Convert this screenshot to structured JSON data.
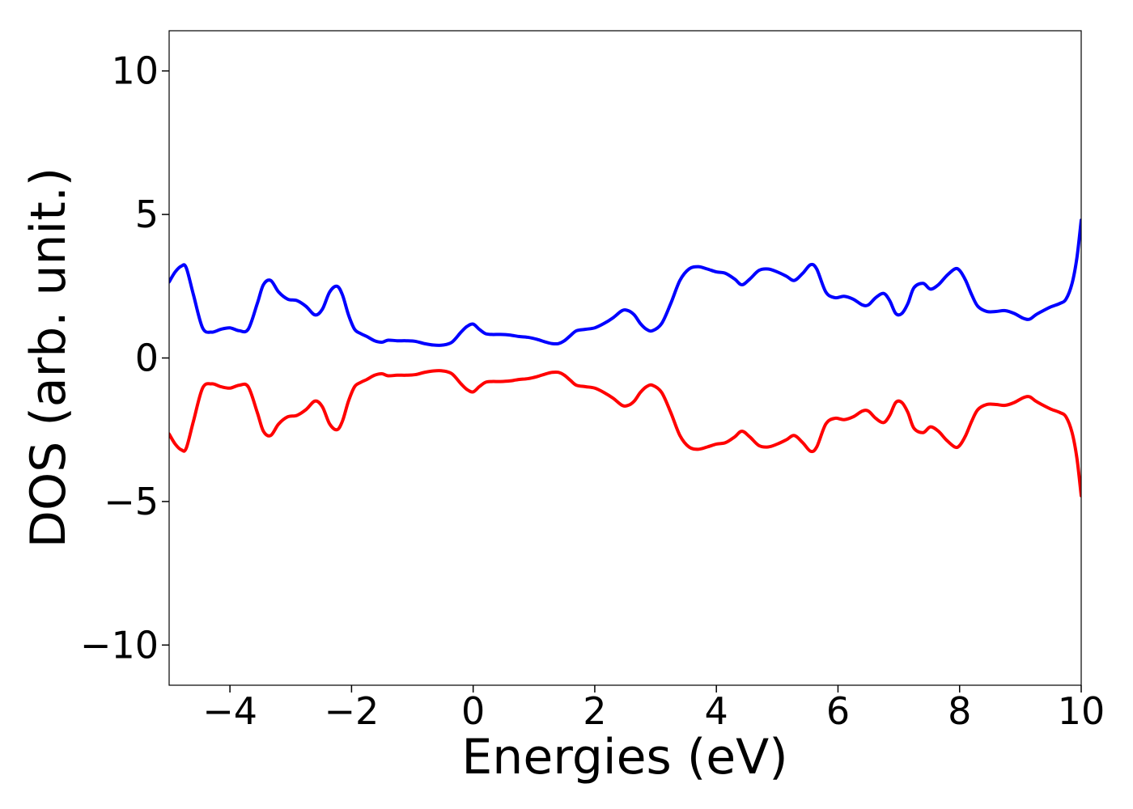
{
  "chart_data": {
    "type": "line",
    "title": "",
    "xlabel": "Energies (eV)",
    "ylabel": "DOS (arb. unit.)",
    "xlim": [
      -5,
      10
    ],
    "ylim": [
      -11.4,
      11.4
    ],
    "xticks": [
      -4,
      -2,
      0,
      2,
      4,
      6,
      8,
      10
    ],
    "xtick_labels": [
      "−4",
      "−2",
      "0",
      "2",
      "4",
      "6",
      "8",
      "10"
    ],
    "yticks": [
      -10,
      -5,
      0,
      5,
      10
    ],
    "ytick_labels": [
      "−10",
      "−5",
      "0",
      "5",
      "10"
    ],
    "grid": false,
    "legend": "none",
    "series": [
      {
        "color": "#0000ff",
        "x": [
          -5.0,
          -4.9,
          -4.8,
          -4.72,
          -4.6,
          -4.45,
          -4.3,
          -4.15,
          -4.0,
          -3.85,
          -3.7,
          -3.55,
          -3.45,
          -3.33,
          -3.2,
          -3.05,
          -2.9,
          -2.75,
          -2.6,
          -2.48,
          -2.36,
          -2.24,
          -2.15,
          -2.05,
          -1.95,
          -1.85,
          -1.75,
          -1.62,
          -1.5,
          -1.4,
          -1.25,
          -1.1,
          -0.95,
          -0.8,
          -0.65,
          -0.5,
          -0.35,
          -0.2,
          -0.1,
          0.0,
          0.1,
          0.2,
          0.3,
          0.45,
          0.6,
          0.75,
          0.9,
          1.05,
          1.2,
          1.3,
          1.4,
          1.5,
          1.6,
          1.7,
          1.85,
          2.0,
          2.15,
          2.3,
          2.45,
          2.55,
          2.65,
          2.75,
          2.85,
          2.95,
          3.1,
          3.25,
          3.4,
          3.55,
          3.7,
          3.85,
          4.0,
          4.15,
          4.3,
          4.42,
          4.55,
          4.7,
          4.85,
          5.0,
          5.15,
          5.28,
          5.42,
          5.55,
          5.65,
          5.8,
          5.95,
          6.1,
          6.25,
          6.4,
          6.5,
          6.62,
          6.75,
          6.85,
          6.95,
          7.05,
          7.15,
          7.25,
          7.4,
          7.52,
          7.65,
          7.78,
          7.92,
          8.0,
          8.1,
          8.2,
          8.3,
          8.45,
          8.6,
          8.75,
          8.9,
          9.05,
          9.15,
          9.25,
          9.35,
          9.5,
          9.65,
          9.75,
          9.85,
          9.93,
          10.0
        ],
        "y": [
          2.65,
          3.0,
          3.2,
          3.15,
          2.2,
          1.05,
          0.9,
          1.0,
          1.05,
          0.95,
          1.0,
          1.9,
          2.55,
          2.7,
          2.3,
          2.05,
          2.0,
          1.8,
          1.5,
          1.7,
          2.3,
          2.5,
          2.2,
          1.5,
          1.0,
          0.85,
          0.75,
          0.6,
          0.55,
          0.62,
          0.6,
          0.6,
          0.58,
          0.5,
          0.45,
          0.45,
          0.55,
          0.9,
          1.1,
          1.18,
          1.0,
          0.85,
          0.82,
          0.82,
          0.8,
          0.75,
          0.72,
          0.65,
          0.55,
          0.5,
          0.5,
          0.6,
          0.78,
          0.95,
          1.0,
          1.05,
          1.2,
          1.4,
          1.65,
          1.65,
          1.5,
          1.2,
          1.0,
          0.95,
          1.2,
          1.9,
          2.7,
          3.1,
          3.18,
          3.1,
          3.0,
          2.95,
          2.75,
          2.55,
          2.75,
          3.05,
          3.1,
          3.0,
          2.85,
          2.7,
          2.95,
          3.25,
          3.1,
          2.3,
          2.1,
          2.15,
          2.05,
          1.85,
          1.85,
          2.1,
          2.25,
          2.0,
          1.55,
          1.55,
          1.9,
          2.45,
          2.6,
          2.4,
          2.55,
          2.85,
          3.1,
          3.05,
          2.7,
          2.2,
          1.8,
          1.62,
          1.62,
          1.65,
          1.55,
          1.38,
          1.35,
          1.5,
          1.62,
          1.78,
          1.9,
          2.05,
          2.6,
          3.5,
          4.8
        ]
      },
      {
        "color": "#ff0000",
        "x": [
          -5.0,
          -4.9,
          -4.8,
          -4.72,
          -4.6,
          -4.45,
          -4.3,
          -4.15,
          -4.0,
          -3.85,
          -3.7,
          -3.55,
          -3.45,
          -3.33,
          -3.2,
          -3.05,
          -2.9,
          -2.75,
          -2.6,
          -2.48,
          -2.36,
          -2.24,
          -2.15,
          -2.05,
          -1.95,
          -1.85,
          -1.75,
          -1.62,
          -1.5,
          -1.4,
          -1.25,
          -1.1,
          -0.95,
          -0.8,
          -0.65,
          -0.5,
          -0.35,
          -0.2,
          -0.1,
          0.0,
          0.1,
          0.2,
          0.3,
          0.45,
          0.6,
          0.75,
          0.9,
          1.05,
          1.2,
          1.3,
          1.4,
          1.5,
          1.6,
          1.7,
          1.85,
          2.0,
          2.15,
          2.3,
          2.45,
          2.55,
          2.65,
          2.75,
          2.85,
          2.95,
          3.1,
          3.25,
          3.4,
          3.55,
          3.7,
          3.85,
          4.0,
          4.15,
          4.3,
          4.42,
          4.55,
          4.7,
          4.85,
          5.0,
          5.15,
          5.28,
          5.42,
          5.55,
          5.65,
          5.8,
          5.95,
          6.1,
          6.25,
          6.4,
          6.5,
          6.62,
          6.75,
          6.85,
          6.95,
          7.05,
          7.15,
          7.25,
          7.4,
          7.52,
          7.65,
          7.78,
          7.92,
          8.0,
          8.1,
          8.2,
          8.3,
          8.45,
          8.6,
          8.75,
          8.9,
          9.05,
          9.15,
          9.25,
          9.35,
          9.5,
          9.65,
          9.75,
          9.85,
          9.93,
          10.0
        ],
        "y": [
          -2.65,
          -3.0,
          -3.2,
          -3.15,
          -2.2,
          -1.05,
          -0.9,
          -1.0,
          -1.05,
          -0.95,
          -1.0,
          -1.9,
          -2.55,
          -2.7,
          -2.3,
          -2.05,
          -2.0,
          -1.8,
          -1.5,
          -1.7,
          -2.3,
          -2.5,
          -2.2,
          -1.5,
          -1.0,
          -0.85,
          -0.75,
          -0.6,
          -0.55,
          -0.62,
          -0.6,
          -0.6,
          -0.58,
          -0.5,
          -0.45,
          -0.45,
          -0.55,
          -0.9,
          -1.1,
          -1.18,
          -1.0,
          -0.85,
          -0.82,
          -0.82,
          -0.8,
          -0.75,
          -0.72,
          -0.65,
          -0.55,
          -0.5,
          -0.5,
          -0.6,
          -0.78,
          -0.95,
          -1.0,
          -1.05,
          -1.2,
          -1.4,
          -1.65,
          -1.65,
          -1.5,
          -1.2,
          -1.0,
          -0.95,
          -1.2,
          -1.9,
          -2.7,
          -3.1,
          -3.18,
          -3.1,
          -3.0,
          -2.95,
          -2.75,
          -2.55,
          -2.75,
          -3.05,
          -3.1,
          -3.0,
          -2.85,
          -2.7,
          -2.95,
          -3.25,
          -3.1,
          -2.3,
          -2.1,
          -2.15,
          -2.05,
          -1.85,
          -1.85,
          -2.1,
          -2.25,
          -2.0,
          -1.55,
          -1.55,
          -1.9,
          -2.45,
          -2.6,
          -2.4,
          -2.55,
          -2.85,
          -3.1,
          -3.05,
          -2.7,
          -2.2,
          -1.8,
          -1.62,
          -1.62,
          -1.65,
          -1.55,
          -1.38,
          -1.35,
          -1.5,
          -1.62,
          -1.78,
          -1.9,
          -2.05,
          -2.6,
          -3.5,
          -4.8
        ]
      }
    ]
  }
}
